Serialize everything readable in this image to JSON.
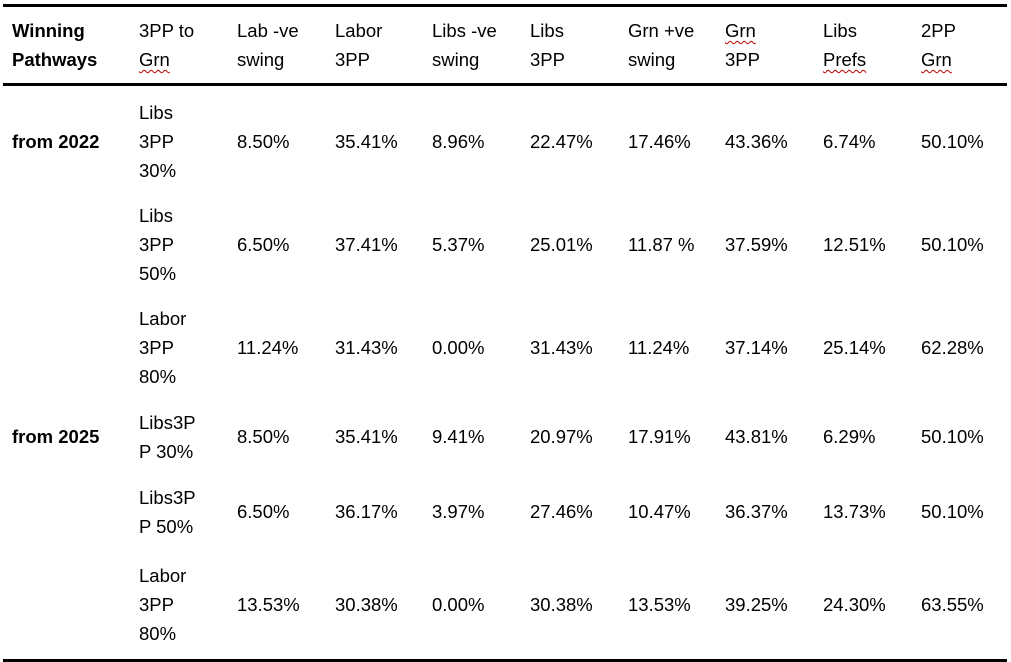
{
  "table": {
    "headers": [
      [
        "Winning",
        "Pathways"
      ],
      [
        "3PP to",
        "Grn"
      ],
      [
        "Lab -ve",
        "swing"
      ],
      [
        "Labor",
        "3PP"
      ],
      [
        "Libs -ve",
        "swing"
      ],
      [
        "Libs",
        "3PP"
      ],
      [
        "Grn +ve",
        "swing"
      ],
      [
        "Grn",
        "3PP"
      ],
      [
        "Libs",
        "Prefs"
      ],
      [
        "2PP",
        "Grn"
      ]
    ],
    "rows": [
      {
        "group": "from 2022",
        "scenario": [
          "Libs",
          "3PP",
          "30%"
        ],
        "values": [
          "8.50%",
          "35.41%",
          "8.96%",
          "22.47%",
          "17.46%",
          "43.36%",
          "6.74%",
          "50.10%"
        ]
      },
      {
        "group": "",
        "scenario": [
          "Libs",
          "3PP",
          "50%"
        ],
        "values": [
          "6.50%",
          "37.41%",
          "5.37%",
          "25.01%",
          "11.87 %",
          "37.59%",
          "12.51%",
          "50.10%"
        ]
      },
      {
        "group": "",
        "scenario": [
          "Labor",
          "3PP",
          "80%"
        ],
        "values": [
          "11.24%",
          "31.43%",
          "0.00%",
          "31.43%",
          "11.24%",
          "37.14%",
          "25.14%",
          "62.28%"
        ]
      },
      {
        "group": "from 2025",
        "scenario": [
          "Libs3P",
          "P 30%"
        ],
        "values": [
          "8.50%",
          "35.41%",
          "9.41%",
          "20.97%",
          "17.91%",
          "43.81%",
          "6.29%",
          "50.10%"
        ]
      },
      {
        "group": "",
        "scenario": [
          "Libs3P",
          "P 50%"
        ],
        "values": [
          "6.50%",
          "36.17%",
          "3.97%",
          "27.46%",
          "10.47%",
          "36.37%",
          "13.73%",
          "50.10%"
        ]
      },
      {
        "group": "",
        "scenario": [
          "Labor",
          "3PP",
          "80%"
        ],
        "values": [
          "13.53%",
          "30.38%",
          "0.00%",
          "30.38%",
          "13.53%",
          "39.25%",
          "24.30%",
          "63.55%"
        ]
      }
    ]
  }
}
